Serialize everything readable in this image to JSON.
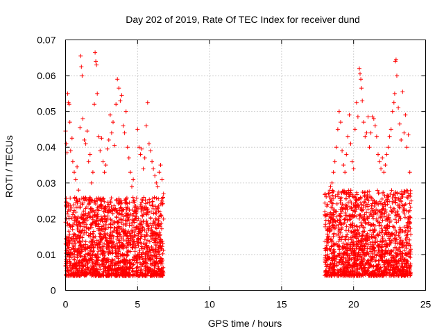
{
  "chart_data": {
    "type": "scatter",
    "title": "Day 202 of 2019, Rate Of TEC Index for receiver dund",
    "xlabel": "GPS time / hours",
    "ylabel": "ROTI / TECUs",
    "xlim": [
      0,
      25
    ],
    "ylim": [
      0,
      0.07
    ],
    "xticks": [
      0,
      5,
      10,
      15,
      20,
      25
    ],
    "xtick_labels": [
      "0",
      "5",
      "10",
      "15",
      "20",
      "25"
    ],
    "yticks": [
      0,
      0.01,
      0.02,
      0.03,
      0.04,
      0.05,
      0.06,
      0.07
    ],
    "ytick_labels": [
      "0",
      "0.01",
      "0.02",
      "0.03",
      "0.04",
      "0.05",
      "0.06",
      "0.07"
    ],
    "grid": true,
    "marker": "+",
    "color": "#ff0000",
    "series": [
      {
        "name": "ROTI",
        "points": [
          [
            0.0,
            0.0445
          ],
          [
            0.05,
            0.041
          ],
          [
            0.1,
            0.0385
          ],
          [
            0.15,
            0.055
          ],
          [
            0.2,
            0.0525
          ],
          [
            0.25,
            0.052
          ],
          [
            0.3,
            0.047
          ],
          [
            0.35,
            0.039
          ],
          [
            0.45,
            0.0425
          ],
          [
            0.5,
            0.036
          ],
          [
            0.6,
            0.033
          ],
          [
            0.7,
            0.031
          ],
          [
            0.8,
            0.0345
          ],
          [
            0.9,
            0.028
          ],
          [
            1.0,
            0.0455
          ],
          [
            1.05,
            0.0655
          ],
          [
            1.1,
            0.0625
          ],
          [
            1.15,
            0.06
          ],
          [
            1.2,
            0.048
          ],
          [
            1.3,
            0.042
          ],
          [
            1.4,
            0.041
          ],
          [
            1.5,
            0.0445
          ],
          [
            1.6,
            0.036
          ],
          [
            1.7,
            0.038
          ],
          [
            1.8,
            0.03
          ],
          [
            1.9,
            0.033
          ],
          [
            2.0,
            0.052
          ],
          [
            2.05,
            0.0665
          ],
          [
            2.1,
            0.064
          ],
          [
            2.15,
            0.063
          ],
          [
            2.2,
            0.055
          ],
          [
            2.3,
            0.043
          ],
          [
            2.4,
            0.039
          ],
          [
            2.5,
            0.0425
          ],
          [
            2.6,
            0.036
          ],
          [
            2.7,
            0.033
          ],
          [
            2.8,
            0.035
          ],
          [
            2.9,
            0.0395
          ],
          [
            3.0,
            0.042
          ],
          [
            3.1,
            0.049
          ],
          [
            3.2,
            0.044
          ],
          [
            3.3,
            0.047
          ],
          [
            3.4,
            0.0405
          ],
          [
            3.5,
            0.052
          ],
          [
            3.6,
            0.059
          ],
          [
            3.7,
            0.0565
          ],
          [
            3.8,
            0.053
          ],
          [
            3.9,
            0.0545
          ],
          [
            4.0,
            0.046
          ],
          [
            4.1,
            0.044
          ],
          [
            4.2,
            0.05
          ],
          [
            4.3,
            0.04
          ],
          [
            4.4,
            0.037
          ],
          [
            4.5,
            0.033
          ],
          [
            4.6,
            0.029
          ],
          [
            4.7,
            0.031
          ],
          [
            4.8,
            0.025
          ],
          [
            4.9,
            0.0215
          ],
          [
            5.0,
            0.045
          ],
          [
            5.1,
            0.04
          ],
          [
            5.2,
            0.038
          ],
          [
            5.3,
            0.0395
          ],
          [
            5.4,
            0.034
          ],
          [
            5.5,
            0.037
          ],
          [
            5.6,
            0.046
          ],
          [
            5.7,
            0.0525
          ],
          [
            5.8,
            0.041
          ],
          [
            5.9,
            0.039
          ],
          [
            6.0,
            0.036
          ],
          [
            6.1,
            0.034
          ],
          [
            6.2,
            0.032
          ],
          [
            6.3,
            0.03
          ],
          [
            6.4,
            0.029
          ],
          [
            6.5,
            0.033
          ],
          [
            6.6,
            0.035
          ],
          [
            6.7,
            0.031
          ],
          [
            6.8,
            0.027
          ],
          [
            18.0,
            0.022
          ],
          [
            18.1,
            0.021
          ],
          [
            18.2,
            0.024
          ],
          [
            18.3,
            0.027
          ],
          [
            18.4,
            0.029
          ],
          [
            18.5,
            0.03
          ],
          [
            18.6,
            0.033
          ],
          [
            18.7,
            0.036
          ],
          [
            18.8,
            0.04
          ],
          [
            18.9,
            0.045
          ],
          [
            19.0,
            0.05
          ],
          [
            19.1,
            0.047
          ],
          [
            19.2,
            0.039
          ],
          [
            19.3,
            0.035
          ],
          [
            19.4,
            0.033
          ],
          [
            19.5,
            0.038
          ],
          [
            19.6,
            0.043
          ],
          [
            19.7,
            0.049
          ],
          [
            19.8,
            0.041
          ],
          [
            19.9,
            0.036
          ],
          [
            20.0,
            0.034
          ],
          [
            20.1,
            0.045
          ],
          [
            20.2,
            0.0525
          ],
          [
            20.3,
            0.0485
          ],
          [
            20.4,
            0.062
          ],
          [
            20.45,
            0.0605
          ],
          [
            20.5,
            0.059
          ],
          [
            20.55,
            0.0565
          ],
          [
            20.6,
            0.053
          ],
          [
            20.7,
            0.047
          ],
          [
            20.8,
            0.043
          ],
          [
            20.9,
            0.044
          ],
          [
            21.0,
            0.0485
          ],
          [
            21.1,
            0.04
          ],
          [
            21.2,
            0.044
          ],
          [
            21.3,
            0.0485
          ],
          [
            21.4,
            0.048
          ],
          [
            21.5,
            0.046
          ],
          [
            21.6,
            0.043
          ],
          [
            21.7,
            0.038
          ],
          [
            21.8,
            0.036
          ],
          [
            21.9,
            0.034
          ],
          [
            22.0,
            0.037
          ],
          [
            22.1,
            0.033
          ],
          [
            22.2,
            0.035
          ],
          [
            22.3,
            0.038
          ],
          [
            22.4,
            0.04
          ],
          [
            22.5,
            0.043
          ],
          [
            22.6,
            0.045
          ],
          [
            22.7,
            0.05
          ],
          [
            22.8,
            0.0525
          ],
          [
            22.85,
            0.055
          ],
          [
            22.9,
            0.064
          ],
          [
            22.95,
            0.0645
          ],
          [
            23.0,
            0.06
          ],
          [
            23.1,
            0.051
          ],
          [
            23.2,
            0.0465
          ],
          [
            23.3,
            0.042
          ],
          [
            23.4,
            0.0555
          ],
          [
            23.5,
            0.044
          ],
          [
            23.6,
            0.049
          ],
          [
            23.7,
            0.04
          ],
          [
            23.8,
            0.0435
          ],
          [
            23.9,
            0.033
          ],
          [
            24.0,
            0.025
          ]
        ]
      }
    ],
    "noise_band": [
      {
        "x_range": [
          0.0,
          6.8
        ],
        "y_range": [
          0.004,
          0.026
        ],
        "gap": [
          4.55,
          4.6
        ]
      },
      {
        "x_range": [
          18.0,
          24.0
        ],
        "y_range": [
          0.004,
          0.028
        ]
      }
    ]
  }
}
